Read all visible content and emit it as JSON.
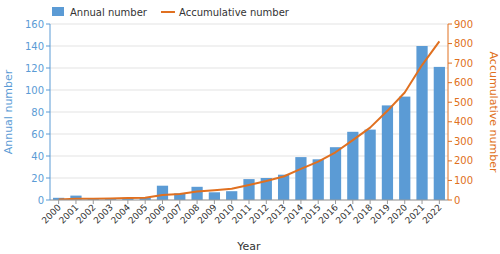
{
  "chart_data": {
    "type": "bar",
    "xlabel": "Year",
    "ylabel": "Annual number",
    "y2label": "Accumulative number",
    "categories": [
      "2000",
      "2001",
      "2002",
      "2003",
      "2004",
      "2005",
      "2006",
      "2007",
      "2008",
      "2009",
      "2010",
      "2011",
      "2012",
      "2013",
      "2014",
      "2015",
      "2016",
      "2017",
      "2018",
      "2019",
      "2020",
      "2021",
      "2022"
    ],
    "series": [
      {
        "name": "Annual number",
        "type": "bar",
        "color": "#5B9BD5",
        "values": [
          2,
          4,
          1,
          1,
          2,
          2,
          13,
          6,
          12,
          7,
          8,
          19,
          20,
          23,
          39,
          37,
          48,
          62,
          64,
          86,
          94,
          140,
          121
        ]
      },
      {
        "name": "Accumulative number",
        "type": "line",
        "axis": "y2",
        "color": "#E07020",
        "values": [
          2,
          6,
          7,
          8,
          10,
          12,
          25,
          31,
          43,
          50,
          58,
          77,
          97,
          120,
          159,
          196,
          244,
          306,
          370,
          456,
          550,
          690,
          811
        ]
      }
    ],
    "ylim": [
      0,
      160
    ],
    "yticks": [
      0,
      20,
      40,
      60,
      80,
      100,
      120,
      140,
      160
    ],
    "y2lim": [
      0,
      900
    ],
    "y2ticks": [
      0,
      100,
      200,
      300,
      400,
      500,
      600,
      700,
      800,
      900
    ],
    "grid": true,
    "legend": "upper left"
  }
}
